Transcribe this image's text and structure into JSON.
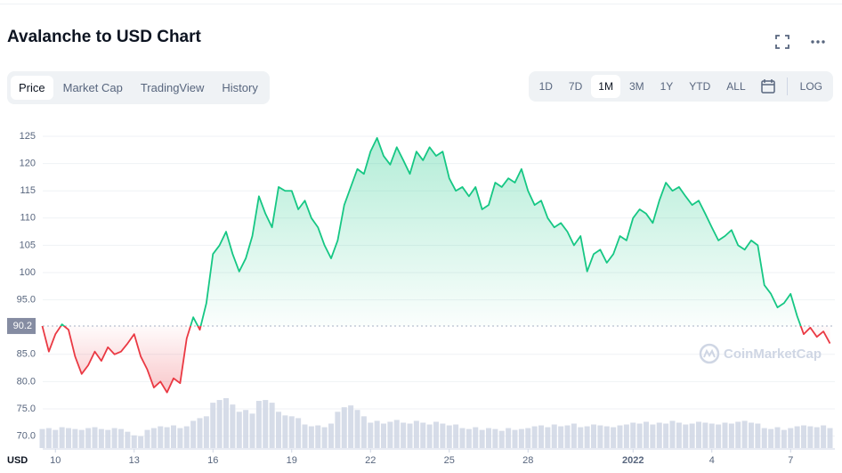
{
  "page": {
    "title": "Avalanche to USD Chart",
    "tabs": [
      "Price",
      "Market Cap",
      "TradingView",
      "History"
    ],
    "ranges": [
      "1D",
      "7D",
      "1M",
      "3M",
      "1Y",
      "YTD",
      "ALL"
    ],
    "log_label": "LOG"
  },
  "chart_data": {
    "type": "line",
    "y_axis_label": "USD",
    "watermark": "CoinMarketCap",
    "baseline": 90.2,
    "categories": [
      null,
      null,
      "10",
      null,
      null,
      null,
      null,
      null,
      null,
      null,
      null,
      null,
      null,
      null,
      "13",
      null,
      null,
      null,
      null,
      null,
      null,
      null,
      null,
      null,
      null,
      null,
      "16",
      null,
      null,
      null,
      null,
      null,
      null,
      null,
      null,
      null,
      null,
      null,
      "19",
      null,
      null,
      null,
      null,
      null,
      null,
      null,
      null,
      null,
      null,
      null,
      "22",
      null,
      null,
      null,
      null,
      null,
      null,
      null,
      null,
      null,
      null,
      null,
      "25",
      null,
      null,
      null,
      null,
      null,
      null,
      null,
      null,
      null,
      null,
      null,
      "28",
      null,
      null,
      null,
      null,
      null,
      null,
      null,
      null,
      null,
      null,
      null,
      null,
      null,
      null,
      null,
      "2022",
      null,
      null,
      null,
      null,
      null,
      null,
      null,
      null,
      null,
      null,
      null,
      "4",
      null,
      null,
      null,
      null,
      null,
      null,
      null,
      null,
      null,
      null,
      null,
      "7",
      null,
      null,
      null,
      null,
      null,
      null
    ],
    "series": [
      {
        "up_color": "#16c784",
        "down_color": "#ea3943",
        "values": [
          90.2,
          85.5,
          88.7,
          90.5,
          89.5,
          84.6,
          81.4,
          83,
          85.5,
          83.8,
          86.3,
          85,
          85.5,
          87,
          88.7,
          84.6,
          82.2,
          78.9,
          80,
          78,
          80.6,
          79.7,
          87.9,
          91.8,
          89.5,
          94.4,
          103.4,
          105,
          107.5,
          103.4,
          100.2,
          102.6,
          106.7,
          114,
          110.8,
          108.3,
          115.7,
          115,
          115,
          111.6,
          113.2,
          110,
          108.3,
          105,
          102.6,
          105.9,
          112.4,
          115.7,
          119,
          118.1,
          122.2,
          124.7,
          121.4,
          119.8,
          123,
          120.6,
          118.1,
          122.2,
          120.6,
          123,
          121.4,
          122.2,
          117.3,
          115,
          115.7,
          114,
          115.7,
          111.6,
          112.4,
          116.5,
          115.7,
          117.3,
          116.5,
          119,
          115,
          112.4,
          113.2,
          110,
          108.3,
          109.1,
          107.5,
          105,
          106.7,
          100.2,
          103.4,
          104.2,
          101.8,
          103.4,
          106.7,
          105.9,
          110,
          111.6,
          110.8,
          109.1,
          113.2,
          116.5,
          115,
          115.7,
          114,
          112.4,
          113.2,
          110.8,
          108.3,
          105.9,
          106.7,
          107.8,
          105,
          104.2,
          105.9,
          105,
          97.7,
          96.1,
          93.6,
          94.4,
          96.1,
          92,
          88.7,
          89.9,
          88.2,
          89.2,
          87
        ]
      }
    ],
    "volume": {
      "color": "#cfd6e4",
      "values": [
        21,
        22,
        20,
        23,
        22,
        21,
        20,
        22,
        23,
        21,
        20,
        22,
        21,
        18,
        14,
        13,
        20,
        22,
        24,
        23,
        25,
        22,
        24,
        30,
        33,
        35,
        50,
        53,
        55,
        48,
        40,
        42,
        38,
        52,
        53,
        50,
        40,
        36,
        35,
        33,
        26,
        24,
        25,
        23,
        27,
        40,
        45,
        47,
        42,
        35,
        28,
        30,
        27,
        29,
        31,
        28,
        27,
        30,
        28,
        26,
        29,
        27,
        25,
        26,
        22,
        21,
        23,
        20,
        22,
        21,
        19,
        22,
        20,
        21,
        22,
        24,
        25,
        23,
        26,
        24,
        25,
        27,
        23,
        24,
        26,
        25,
        24,
        23,
        25,
        26,
        28,
        27,
        29,
        26,
        28,
        27,
        30,
        28,
        26,
        27,
        29,
        28,
        27,
        26,
        28,
        27,
        29,
        30,
        28,
        27,
        22,
        21,
        23,
        20,
        22,
        24,
        25,
        24,
        23,
        25,
        22
      ]
    },
    "ylim": [
      67.8,
      130.4
    ],
    "yticks": [
      {
        "value": 70,
        "label": "70.0"
      },
      {
        "value": 75,
        "label": "75.0"
      },
      {
        "value": 80,
        "label": "80.0"
      },
      {
        "value": 85,
        "label": "85.0"
      },
      {
        "value": 95,
        "label": "95.0"
      },
      100,
      105,
      110,
      115,
      120,
      125
    ],
    "grid": true
  }
}
